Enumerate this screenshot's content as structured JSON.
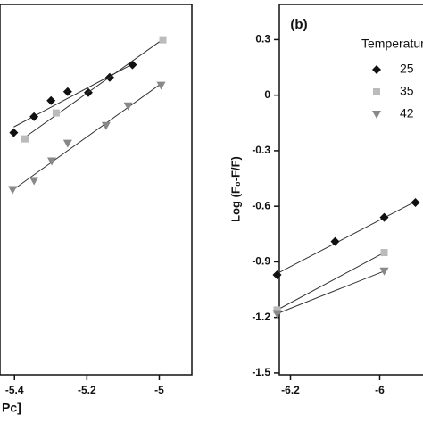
{
  "chart_data": [
    {
      "type": "scatter",
      "xlabel": "Pc]",
      "xlim": [
        -5.44,
        -4.91
      ],
      "ylim": [
        -1.51,
        0.49
      ],
      "xticks": [
        -5.4,
        -5.2,
        -5.0
      ],
      "series": [
        {
          "marker": "diamond",
          "color": "#111111",
          "x": [
            -5.402,
            -5.346,
            -5.299,
            -5.253,
            -5.196,
            -5.137,
            -5.074
          ],
          "values": [
            -0.202,
            -0.116,
            -0.029,
            0.019,
            0.014,
            0.096,
            0.164
          ]
        },
        {
          "marker": "square",
          "color": "#bbbbbb",
          "x": [
            -5.371,
            -5.285,
            -4.99
          ],
          "values": [
            -0.236,
            -0.096,
            0.299
          ]
        },
        {
          "marker": "triangle",
          "color": "#888888",
          "x": [
            -5.405,
            -5.346,
            -5.297,
            -5.253,
            -5.147,
            -5.086,
            -4.995
          ],
          "values": [
            -0.51,
            -0.462,
            -0.356,
            -0.26,
            -0.164,
            -0.058,
            0.053
          ]
        }
      ]
    },
    {
      "type": "scatter",
      "panel_label": "(b)",
      "ylabel": "Log (F₀-F/F)",
      "legend_title": "Temperature",
      "xlim": [
        -6.225,
        -5.903
      ],
      "ylim": [
        -1.51,
        0.49
      ],
      "xticks": [
        -6.2,
        -6.0
      ],
      "yticks": [
        0.3,
        0.0,
        -0.3,
        -0.6,
        -0.9,
        -1.2,
        -1.5
      ],
      "series": [
        {
          "name": "25",
          "marker": "diamond",
          "color": "#111111",
          "x": [
            -6.23,
            -6.1,
            -5.99,
            -5.92
          ],
          "values": [
            -0.97,
            -0.79,
            -0.66,
            -0.58
          ]
        },
        {
          "name": "35",
          "marker": "square",
          "color": "#bbbbbb",
          "x": [
            -6.23,
            -5.99
          ],
          "values": [
            -1.16,
            -0.85
          ]
        },
        {
          "name": "42",
          "marker": "triangle",
          "color": "#888888",
          "x": [
            -6.23,
            -5.99
          ],
          "values": [
            -1.18,
            -0.95
          ]
        }
      ]
    }
  ]
}
